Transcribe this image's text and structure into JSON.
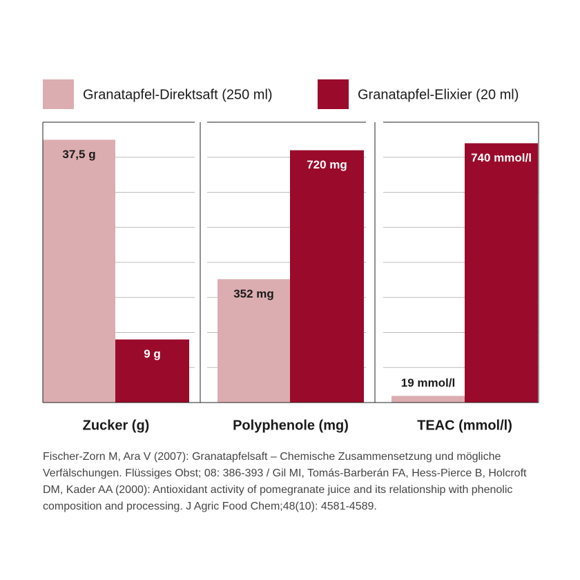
{
  "legend": [
    {
      "name": "Granatapfel-Direktsaft (250 ml)",
      "color": "#dcadb0"
    },
    {
      "name": "Granatapfel-Elixier (20 ml)",
      "color": "#9a0a2a"
    }
  ],
  "chart_data": [
    {
      "type": "bar",
      "xlabel": "Zucker (g)",
      "values": [
        37.5,
        9
      ],
      "value_labels": [
        "37,5 g",
        "9 g"
      ],
      "ylim": [
        0,
        40
      ],
      "yticks": [
        5,
        10,
        15,
        20,
        25,
        30,
        35,
        40
      ],
      "grid": true,
      "tick_labels": false
    },
    {
      "type": "bar",
      "xlabel": "Polyphenole (mg)",
      "values": [
        352,
        720
      ],
      "value_labels": [
        "352 mg",
        "720 mg"
      ],
      "ylim": [
        0,
        800
      ],
      "yticks": [
        100,
        200,
        300,
        400,
        500,
        600,
        700,
        800
      ],
      "grid": true,
      "tick_labels": false
    },
    {
      "type": "bar",
      "xlabel": "TEAC (mmol/l)",
      "values": [
        19,
        740
      ],
      "value_labels": [
        "19 mmol/l",
        "740 mmol/l"
      ],
      "ylim": [
        0,
        800
      ],
      "yticks": [
        100,
        200,
        300,
        400,
        500,
        600,
        700,
        800
      ],
      "grid": true,
      "tick_labels": false
    }
  ],
  "footnote": [
    "Fischer-Zorn M, Ara V (2007): Granatapfelsaft – Chemische Zusammensetzung und mögliche",
    "Verfälschungen. Flüssiges Obst; 08: 386-393 / Gil MI, Tomás-Barberán FA, Hess-Pierce B, Holcroft",
    "DM, Kader AA (2000): Antioxidant activity of pomegranate juice and its relationship with phenolic",
    "composition and processing. J Agric Food Chem;48(10): 4581-4589."
  ]
}
